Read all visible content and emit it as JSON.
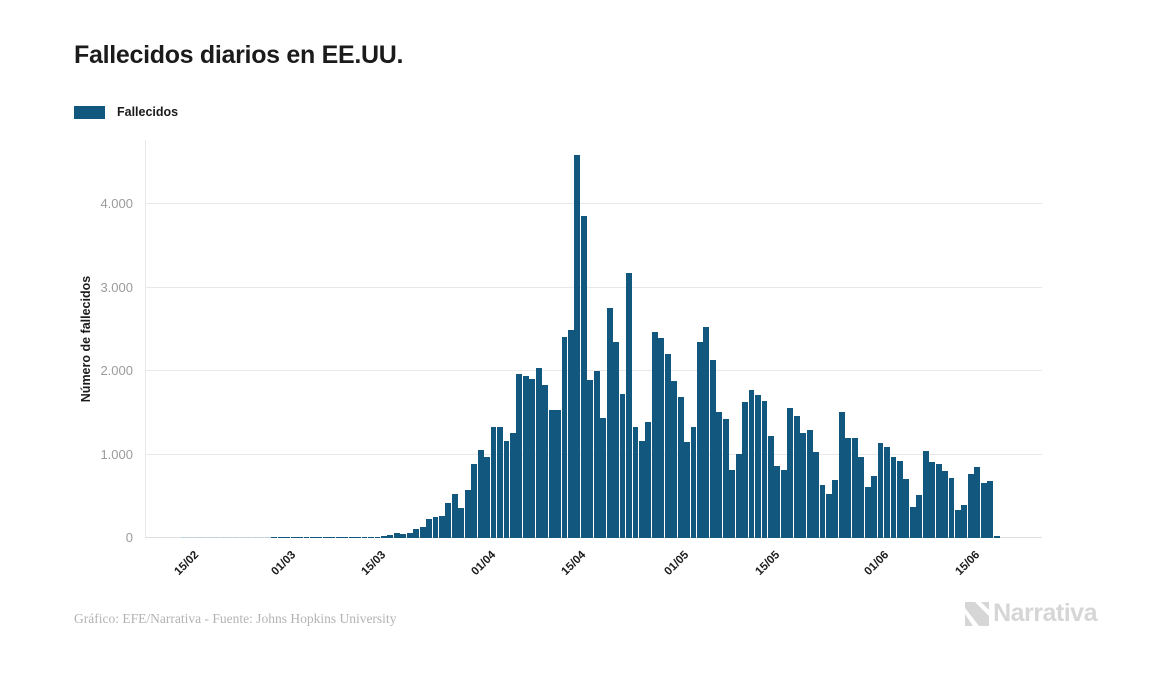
{
  "header": {
    "title": "Fallecidos diarios en EE.UU."
  },
  "legend": {
    "label": "Fallecidos",
    "swatch_color": "#12577E"
  },
  "footer": {
    "credit": "Gráfico: EFE/Narrativa - Fuente: Johns Hopkins University",
    "brand": "Narrativa"
  },
  "colors": {
    "bar": "#12577E",
    "zero_bar": "#bfd2de",
    "gridline": "#e8e8e8",
    "axis_text": "#9b9b9b",
    "title_text": "#1b1b1b",
    "credit_text": "#b3b3b3",
    "brand_text": "#d6d6d6"
  },
  "chart_data": {
    "type": "bar",
    "title": "Fallecidos diarios en EE.UU.",
    "xlabel": "",
    "ylabel": "Número de fallecidos",
    "series_name": "Fallecidos",
    "grid": "horizontal",
    "legend_position": "top-left",
    "ylim": [
      0,
      4766
    ],
    "y_ticks": {
      "labels": [
        "0",
        "1.000",
        "2.000",
        "3.000",
        "4.000"
      ],
      "values": [
        0,
        1000,
        2000,
        3000,
        4000
      ]
    },
    "x_ticks": [
      {
        "label": "15/02",
        "index": 0
      },
      {
        "label": "01/03",
        "index": 15
      },
      {
        "label": "15/03",
        "index": 29
      },
      {
        "label": "01/04",
        "index": 46
      },
      {
        "label": "15/04",
        "index": 60
      },
      {
        "label": "01/05",
        "index": 76
      },
      {
        "label": "15/05",
        "index": 90
      },
      {
        "label": "01/06",
        "index": 107
      },
      {
        "label": "15/06",
        "index": 121
      }
    ],
    "x": [
      "15/02",
      "16/02",
      "17/02",
      "18/02",
      "19/02",
      "20/02",
      "21/02",
      "22/02",
      "23/02",
      "24/02",
      "25/02",
      "26/02",
      "27/02",
      "28/02",
      "29/02",
      "01/03",
      "02/03",
      "03/03",
      "04/03",
      "05/03",
      "06/03",
      "07/03",
      "08/03",
      "09/03",
      "10/03",
      "11/03",
      "12/03",
      "13/03",
      "14/03",
      "15/03",
      "16/03",
      "17/03",
      "18/03",
      "19/03",
      "20/03",
      "21/03",
      "22/03",
      "23/03",
      "24/03",
      "25/03",
      "26/03",
      "27/03",
      "28/03",
      "29/03",
      "30/03",
      "31/03",
      "01/04",
      "02/04",
      "03/04",
      "04/04",
      "05/04",
      "06/04",
      "07/04",
      "08/04",
      "09/04",
      "10/04",
      "11/04",
      "12/04",
      "13/04",
      "14/04",
      "15/04",
      "16/04",
      "17/04",
      "18/04",
      "19/04",
      "20/04",
      "21/04",
      "22/04",
      "23/04",
      "24/04",
      "25/04",
      "26/04",
      "27/04",
      "28/04",
      "29/04",
      "30/04",
      "01/05",
      "02/05",
      "03/05",
      "04/05",
      "05/05",
      "06/05",
      "07/05",
      "08/05",
      "09/05",
      "10/05",
      "11/05",
      "12/05",
      "13/05",
      "14/05",
      "15/05",
      "16/05",
      "17/05",
      "18/05",
      "19/05",
      "20/05",
      "21/05",
      "22/05",
      "23/05",
      "24/05",
      "25/05",
      "26/05",
      "27/05",
      "28/05",
      "29/05",
      "30/05",
      "31/05",
      "01/06",
      "02/06",
      "03/06",
      "04/06",
      "05/06",
      "06/06",
      "07/06",
      "08/06",
      "09/06",
      "10/06",
      "11/06",
      "12/06",
      "13/06",
      "14/06",
      "15/06",
      "16/06",
      "17/06",
      "18/06",
      "19/06",
      "20/06"
    ],
    "values": [
      0,
      0,
      0,
      0,
      0,
      0,
      0,
      0,
      0,
      0,
      0,
      0,
      0,
      0,
      1,
      1,
      5,
      3,
      4,
      1,
      3,
      2,
      4,
      4,
      7,
      9,
      4,
      10,
      8,
      12,
      18,
      26,
      42,
      56,
      49,
      60,
      113,
      135,
      225,
      246,
      267,
      417,
      525,
      364,
      575,
      885,
      1055,
      975,
      1325,
      1330,
      1165,
      1255,
      1970,
      1940,
      1900,
      2035,
      1830,
      1530,
      1535,
      2405,
      2495,
      4591,
      3857,
      1890,
      2000,
      1433,
      2751,
      2350,
      1720,
      3179,
      1330,
      1160,
      1385,
      2470,
      2390,
      2200,
      1885,
      1690,
      1155,
      1325,
      2350,
      2528,
      2129,
      1510,
      1420,
      820,
      1008,
      1630,
      1772,
      1715,
      1635,
      1220,
      865,
      810,
      1552,
      1461,
      1263,
      1293,
      1035,
      640,
      530,
      695,
      1505,
      1200,
      1195,
      965,
      605,
      745,
      1135,
      1085,
      975,
      920,
      710,
      375,
      510,
      1040,
      905,
      890,
      800,
      715,
      330,
      390,
      765,
      855,
      660,
      680,
      30
    ]
  }
}
